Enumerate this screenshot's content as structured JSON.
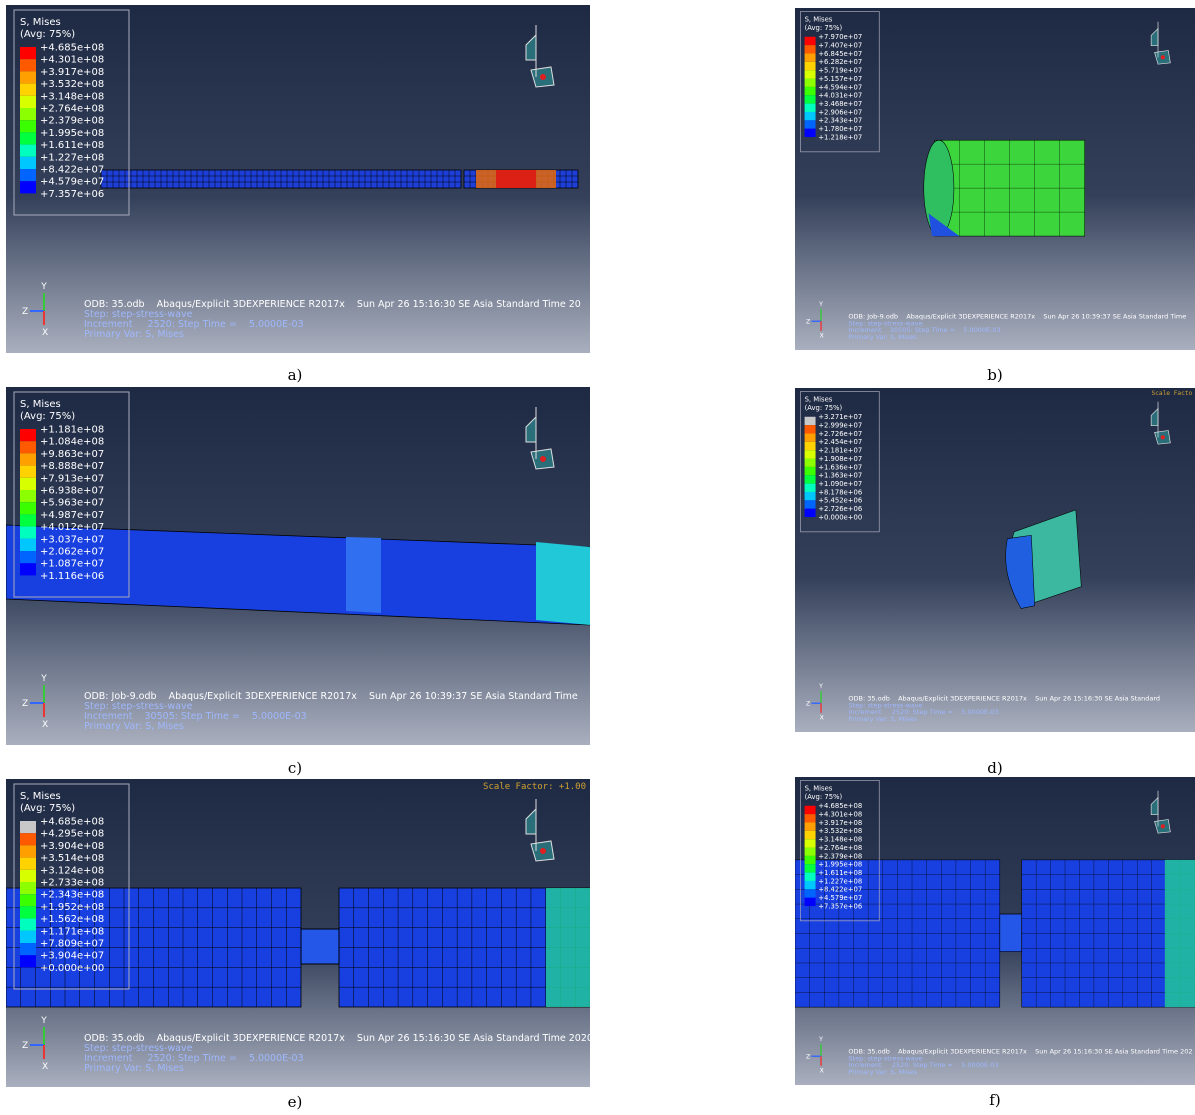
{
  "panels": [
    {
      "caption": "a)",
      "legend_title": "S, Mises",
      "legend_avg": "(Avg: 75%)",
      "legend_labels": [
        "+4.685e+08",
        "+4.301e+08",
        "+3.917e+08",
        "+3.532e+08",
        "+3.148e+08",
        "+2.764e+08",
        "+2.379e+08",
        "+1.995e+08",
        "+1.611e+08",
        "+1.227e+08",
        "+8.422e+07",
        "+4.579e+07",
        "+7.357e+06"
      ],
      "info": [
        "ODB: 35.odb    Abaqus/Explicit 3DEXPERIENCE R2017x    Sun Apr 26 15:16:30 SE Asia Standard Time 20",
        "Step: step-stress-wave",
        "Increment     2520: Step Time =    5.0000E-03",
        "Primary Var: S, Mises"
      ],
      "triad": [
        "Y",
        "Z",
        "X"
      ]
    },
    {
      "caption": "b)",
      "legend_title": "S, Mises",
      "legend_avg": "(Avg: 75%)",
      "legend_labels": [
        "+7.970e+07",
        "+7.407e+07",
        "+6.845e+07",
        "+6.282e+07",
        "+5.719e+07",
        "+5.157e+07",
        "+4.594e+07",
        "+4.031e+07",
        "+3.468e+07",
        "+2.906e+07",
        "+2.343e+07",
        "+1.780e+07",
        "+1.218e+07"
      ],
      "info": [
        "ODB: Job-9.odb    Abaqus/Explicit 3DEXPERIENCE R2017x    Sun Apr 26 10:39:37 SE Asia Standard Time",
        "Step: step-stress-wave",
        "Increment    30505: Step Time =    5.0000E-03",
        "Primary Var: S, Mises"
      ],
      "triad": [
        "Y",
        "Z",
        "X"
      ]
    },
    {
      "caption": "c)",
      "legend_title": "S, Mises",
      "legend_avg": "(Avg: 75%)",
      "legend_labels": [
        "+1.181e+08",
        "+1.084e+08",
        "+9.863e+07",
        "+8.888e+07",
        "+7.913e+07",
        "+6.938e+07",
        "+5.963e+07",
        "+4.987e+07",
        "+4.012e+07",
        "+3.037e+07",
        "+2.062e+07",
        "+1.087e+07",
        "+1.116e+06"
      ],
      "info": [
        "ODB: Job-9.odb    Abaqus/Explicit 3DEXPERIENCE R2017x    Sun Apr 26 10:39:37 SE Asia Standard Time",
        "Step: step-stress-wave",
        "Increment    30505: Step Time =    5.0000E-03",
        "Primary Var: S, Mises"
      ],
      "triad": [
        "Y",
        "Z",
        "X"
      ]
    },
    {
      "caption": "d)",
      "legend_title": "S, Mises",
      "legend_avg": "(Avg: 75%)",
      "legend_labels": [
        "+3.271e+07",
        "+2.999e+07",
        "+2.726e+07",
        "+2.454e+07",
        "+2.181e+07",
        "+1.908e+07",
        "+1.636e+07",
        "+1.363e+07",
        "+1.090e+07",
        "+8.178e+06",
        "+5.452e+06",
        "+2.726e+06",
        "+0.000e+00"
      ],
      "info": [
        "ODB: 35.odb    Abaqus/Explicit 3DEXPERIENCE R2017x    Sun Apr 26 15:16:30 SE Asia Standard",
        "Step: step-stress-wave",
        "Increment     2520: Step Time =    5.0000E-03",
        "Primary Var: S, Mises"
      ],
      "scale_factor": "Scale Facto",
      "triad": [
        "Y",
        "Z",
        "X"
      ]
    },
    {
      "caption": "e)",
      "legend_title": "S, Mises",
      "legend_avg": "(Avg: 75%)",
      "legend_labels": [
        "+4.685e+08",
        "+4.295e+08",
        "+3.904e+08",
        "+3.514e+08",
        "+3.124e+08",
        "+2.733e+08",
        "+2.343e+08",
        "+1.952e+08",
        "+1.562e+08",
        "+1.171e+08",
        "+7.809e+07",
        "+3.904e+07",
        "+0.000e+00"
      ],
      "info": [
        "ODB: 35.odb    Abaqus/Explicit 3DEXPERIENCE R2017x    Sun Apr 26 15:16:30 SE Asia Standard Time 2020",
        "Step: step-stress-wave",
        "Increment     2520: Step Time =    5.0000E-03",
        "Primary Var: S, Mises"
      ],
      "scale_factor": "Scale Factor: +1.00",
      "triad": [
        "Y",
        "Z",
        "X"
      ]
    },
    {
      "caption": "f)",
      "legend_title": "S, Mises",
      "legend_avg": "(Avg: 75%)",
      "legend_labels": [
        "+4.685e+08",
        "+4.301e+08",
        "+3.917e+08",
        "+3.532e+08",
        "+3.148e+08",
        "+2.764e+08",
        "+2.379e+08",
        "+1.995e+08",
        "+1.611e+08",
        "+1.227e+08",
        "+8.422e+07",
        "+4.579e+07",
        "+7.357e+06"
      ],
      "info": [
        "ODB: 35.odb    Abaqus/Explicit 3DEXPERIENCE R2017x    Sun Apr 26 15:16:30 SE Asia Standard Time 202",
        "Step: step-stress-wave",
        "Increment     2520: Step Time =    5.0000E-03",
        "Primary Var: S, Mises"
      ],
      "triad": [
        "Y",
        "Z",
        "X"
      ]
    }
  ]
}
